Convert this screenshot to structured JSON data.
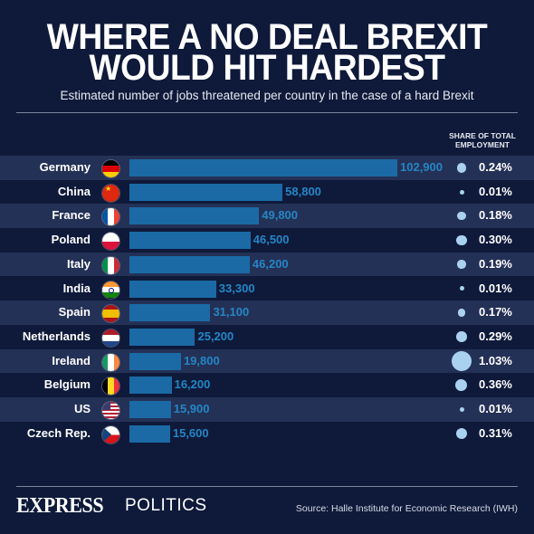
{
  "header": {
    "title_line1": "WHERE A NO DEAL BREXIT",
    "title_line2": "WOULD HIT HARDEST",
    "subtitle": "Estimated number of jobs threatened per country in the case of a hard Brexit",
    "share_heading_line1": "SHARE OF TOTAL",
    "share_heading_line2": "EMPLOYMENT"
  },
  "colors": {
    "background": "#0f1a3a",
    "stripe": "#243156",
    "bar": "#1b6aa6",
    "value_text": "#2486c6",
    "dot": "#a9d2f0"
  },
  "chart_data": {
    "type": "bar",
    "orientation": "horizontal",
    "categories": [
      "Germany",
      "China",
      "France",
      "Poland",
      "Italy",
      "India",
      "Spain",
      "Netherlands",
      "Ireland",
      "Belgium",
      "US",
      "Czech Rep."
    ],
    "values": [
      102900,
      58800,
      49800,
      46500,
      46200,
      33300,
      31100,
      25200,
      19800,
      16200,
      15900,
      15600
    ],
    "value_labels": [
      "102,900",
      "58,800",
      "49,800",
      "46,500",
      "46,200",
      "33,300",
      "31,100",
      "25,200",
      "19,800",
      "16,200",
      "15,900",
      "15,600"
    ],
    "share_of_total_employment": [
      0.24,
      0.01,
      0.18,
      0.3,
      0.19,
      0.01,
      0.17,
      0.29,
      1.03,
      0.36,
      0.01,
      0.31
    ],
    "share_labels": [
      "0.24%",
      "0.01%",
      "0.18%",
      "0.30%",
      "0.19%",
      "0.01%",
      "0.17%",
      "0.29%",
      "1.03%",
      "0.36%",
      "0.01%",
      "0.31%"
    ],
    "flags": [
      "germany-flag-icon",
      "china-flag-icon",
      "france-flag-icon",
      "poland-flag-icon",
      "italy-flag-icon",
      "india-flag-icon",
      "spain-flag-icon",
      "netherlands-flag-icon",
      "ireland-flag-icon",
      "belgium-flag-icon",
      "us-flag-icon",
      "czech-flag-icon"
    ],
    "xlim": [
      0,
      102900
    ]
  },
  "footer": {
    "brand": "EXPRESS",
    "section": "POLITICS",
    "source": "Source: Halle Institute for Economic Research (IWH)"
  }
}
